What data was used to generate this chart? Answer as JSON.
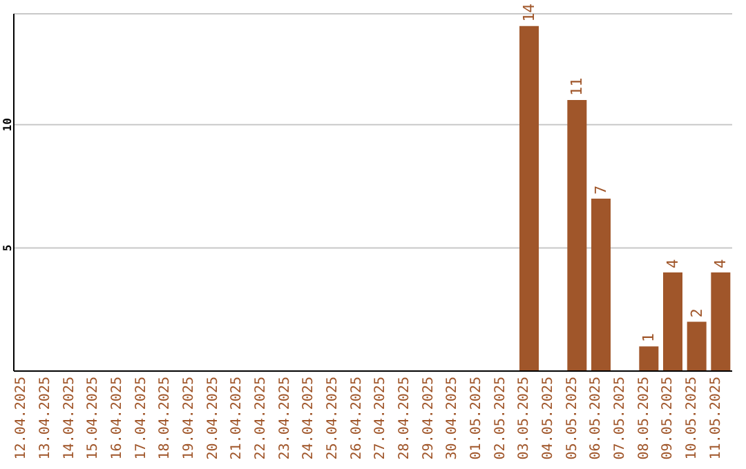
{
  "chart_data": {
    "type": "bar",
    "categories": [
      "12.04.2025",
      "13.04.2025",
      "14.04.2025",
      "15.04.2025",
      "16.04.2025",
      "17.04.2025",
      "18.04.2025",
      "19.04.2025",
      "20.04.2025",
      "21.04.2025",
      "22.04.2025",
      "23.04.2025",
      "24.04.2025",
      "25.04.2025",
      "26.04.2025",
      "27.04.2025",
      "28.04.2025",
      "29.04.2025",
      "30.04.2025",
      "01.05.2025",
      "02.05.2025",
      "03.05.2025",
      "04.05.2025",
      "05.05.2025",
      "06.05.2025",
      "07.05.2025",
      "08.05.2025",
      "09.05.2025",
      "10.05.2025",
      "11.05.2025"
    ],
    "values": [
      0,
      0,
      0,
      0,
      0,
      0,
      0,
      0,
      0,
      0,
      0,
      0,
      0,
      0,
      0,
      0,
      0,
      0,
      0,
      0,
      0,
      14,
      0,
      11,
      7,
      0,
      1,
      4,
      2,
      4
    ],
    "value_labels": [
      null,
      null,
      null,
      null,
      null,
      null,
      null,
      null,
      null,
      null,
      null,
      null,
      null,
      null,
      null,
      null,
      null,
      null,
      null,
      null,
      null,
      "14",
      null,
      "11",
      "7",
      null,
      "1",
      "4",
      "2",
      "4"
    ],
    "color": "#a0562a",
    "ylim": [
      0,
      14.5
    ],
    "yticks": [
      5,
      10
    ],
    "grid": "y"
  }
}
